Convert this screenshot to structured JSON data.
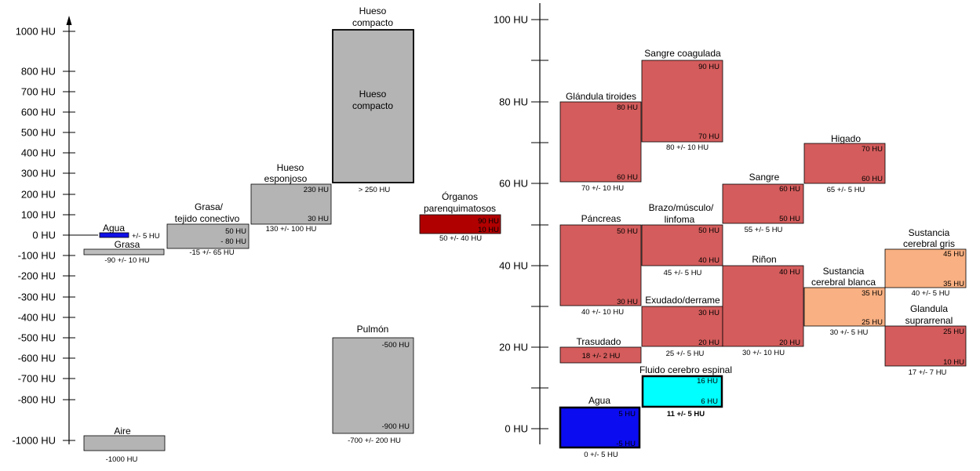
{
  "left_scale": {
    "ticks": [
      {
        "value": 1000,
        "label": "1000 HU"
      },
      {
        "value": 800,
        "label": "800 HU"
      },
      {
        "value": 700,
        "label": "700 HU"
      },
      {
        "value": 600,
        "label": "600 HU"
      },
      {
        "value": 500,
        "label": "500 HU"
      },
      {
        "value": 400,
        "label": "400 HU"
      },
      {
        "value": 300,
        "label": "300 HU"
      },
      {
        "value": 200,
        "label": "200 HU"
      },
      {
        "value": 100,
        "label": "100 HU"
      },
      {
        "value": 0,
        "label": "0 HU"
      },
      {
        "value": -100,
        "label": "-100 HU"
      },
      {
        "value": -200,
        "label": "-200 HU"
      },
      {
        "value": -300,
        "label": "-300 HU"
      },
      {
        "value": -400,
        "label": "-400 HU"
      },
      {
        "value": -500,
        "label": "-500 HU"
      },
      {
        "value": -600,
        "label": "-600 HU"
      },
      {
        "value": -700,
        "label": "-700 HU"
      },
      {
        "value": -800,
        "label": "-800 HU"
      },
      {
        "value": -1000,
        "label": "-1000 HU"
      }
    ],
    "boxes": [
      {
        "id": "agua-l",
        "name": [
          "Agua"
        ],
        "lo": -10,
        "hi": 20,
        "color": "#1010e8",
        "range": "+/- 5 HU"
      },
      {
        "id": "grasa-l",
        "name": [
          "Grasa"
        ],
        "lo": -100,
        "hi": -80,
        "color": "#bdbdbd",
        "range": "-90 +/- 10 HU"
      },
      {
        "id": "grasa-tejido",
        "name": [
          "Grasa/",
          "tejido conectivo"
        ],
        "lo": -80,
        "hi": 50,
        "color": "#b4b4b4",
        "range": "-15 +/- 65 HU",
        "top_label": "50 HU",
        "bottom_label": "- 80 HU"
      },
      {
        "id": "hueso-esponjoso",
        "name": [
          "Hueso",
          "esponjoso"
        ],
        "lo": 30,
        "hi": 230,
        "color": "#b4b4b4",
        "range": "130 +/- 100 HU",
        "top_label": "230 HU",
        "bottom_label": "30 HU"
      },
      {
        "id": "hueso-compacto",
        "name": [
          "Hueso",
          "compacto"
        ],
        "lo": 250,
        "hi": 1000,
        "color": "#b4b4b4",
        "range": "> 250 HU",
        "inner": [
          "Hueso",
          "compacto"
        ]
      },
      {
        "id": "organos",
        "name": [
          "Órganos",
          "parenquimatosos"
        ],
        "lo": 10,
        "hi": 90,
        "color": "#b00000",
        "range": "50 +/- 40 HU",
        "top_label": "90 HU",
        "bottom_label": "10 HU"
      },
      {
        "id": "pulmon",
        "name": [
          "Pulmón"
        ],
        "lo": -900,
        "hi": -500,
        "color": "#b4b4b4",
        "range": "-700 +/- 200 HU",
        "top_label": "-500 HU",
        "bottom_label": "-900 HU"
      },
      {
        "id": "aire",
        "name": [
          "Aire"
        ],
        "lo": -1060,
        "hi": -980,
        "color": "#b4b4b4",
        "range": "-1000 HU"
      }
    ]
  },
  "right_scale": {
    "ticks": [
      {
        "value": 100,
        "label": "100 HU"
      },
      {
        "value": 80,
        "label": "80 HU"
      },
      {
        "value": 60,
        "label": "60 HU"
      },
      {
        "value": 40,
        "label": "40 HU"
      },
      {
        "value": 20,
        "label": "20 HU"
      },
      {
        "value": 0,
        "label": "0 HU"
      }
    ],
    "boxes": [
      {
        "id": "tiroides",
        "name": [
          "Glándula tiroides"
        ],
        "lo": 60,
        "hi": 80,
        "color": "#d45c5c",
        "range": "70 +/- 10 HU",
        "top_label": "80 HU",
        "bottom_label": "60 HU"
      },
      {
        "id": "sangre-coagulada",
        "name": [
          "Sangre coagulada"
        ],
        "lo": 70,
        "hi": 90,
        "color": "#d45c5c",
        "range": "80 +/- 10 HU",
        "top_label": "90 HU",
        "bottom_label": "70 HU"
      },
      {
        "id": "pancreas",
        "name": [
          "Páncreas"
        ],
        "lo": 30,
        "hi": 50,
        "color": "#d45c5c",
        "range": "40 +/- 10 HU",
        "top_label": "50 HU",
        "bottom_label": "30 HU"
      },
      {
        "id": "brazo",
        "name": [
          "Brazo/músculo/",
          "linfoma"
        ],
        "lo": 40,
        "hi": 50,
        "color": "#d45c5c",
        "range": "45 +/- 5 HU",
        "top_label": "50 HU",
        "bottom_label": "40 HU"
      },
      {
        "id": "sangre",
        "name": [
          "Sangre"
        ],
        "lo": 50,
        "hi": 60,
        "color": "#d45c5c",
        "range": "55 +/- 5 HU",
        "top_label": "60 HU",
        "bottom_label": "50 HU"
      },
      {
        "id": "higado",
        "name": [
          "Higado"
        ],
        "lo": 60,
        "hi": 70,
        "color": "#d45c5c",
        "range": "65 +/- 5 HU",
        "top_label": "70 HU",
        "bottom_label": "60 HU"
      },
      {
        "id": "exudado",
        "name": [
          "Exudado/derrame"
        ],
        "lo": 20,
        "hi": 30,
        "color": "#d45c5c",
        "range": "25 +/- 5 HU",
        "top_label": "30 HU",
        "bottom_label": "20 HU"
      },
      {
        "id": "rinon",
        "name": [
          "Riñon"
        ],
        "lo": 20,
        "hi": 40,
        "color": "#d45c5c",
        "range": "30 +/- 10 HU",
        "top_label": "40 HU",
        "bottom_label": "20 HU"
      },
      {
        "id": "blanca",
        "name": [
          "Sustancia",
          "cerebral blanca"
        ],
        "lo": 25,
        "hi": 35,
        "color": "#f9b082",
        "range": "30 +/- 5 HU",
        "top_label": "35 HU",
        "bottom_label": "25 HU"
      },
      {
        "id": "gris",
        "name": [
          "Sustancia",
          "cerebral gris"
        ],
        "lo": 35,
        "hi": 45,
        "color": "#f9b082",
        "range": "40 +/- 5 HU",
        "top_label": "45 HU",
        "bottom_label": "35 HU"
      },
      {
        "id": "suprarrenal",
        "name": [
          "Glandula",
          "suprarrenal"
        ],
        "lo": 10,
        "hi": 25,
        "color": "#d45c5c",
        "range": "17 +/- 7 HU",
        "top_label": "25 HU",
        "bottom_label": "10 HU"
      },
      {
        "id": "trasudado",
        "name": [
          "Trasudado"
        ],
        "lo": 16,
        "hi": 20,
        "color": "#d45c5c",
        "inner_text": "18 +/- 2 HU"
      },
      {
        "id": "lcr",
        "name": [
          "Fluido cerebro espinal"
        ],
        "lo": 6,
        "hi": 16,
        "color": "#00ffff",
        "range": "11 +/- 5 HU",
        "top_label": "16 HU",
        "bottom_label": "6 HU"
      },
      {
        "id": "agua-r",
        "name": [
          "Agua"
        ],
        "lo": -5,
        "hi": 5,
        "color": "#0c0cf0",
        "range": "0 +/- 5 HU",
        "top_label": "5 HU",
        "bottom_label": "-5 HU"
      }
    ]
  }
}
